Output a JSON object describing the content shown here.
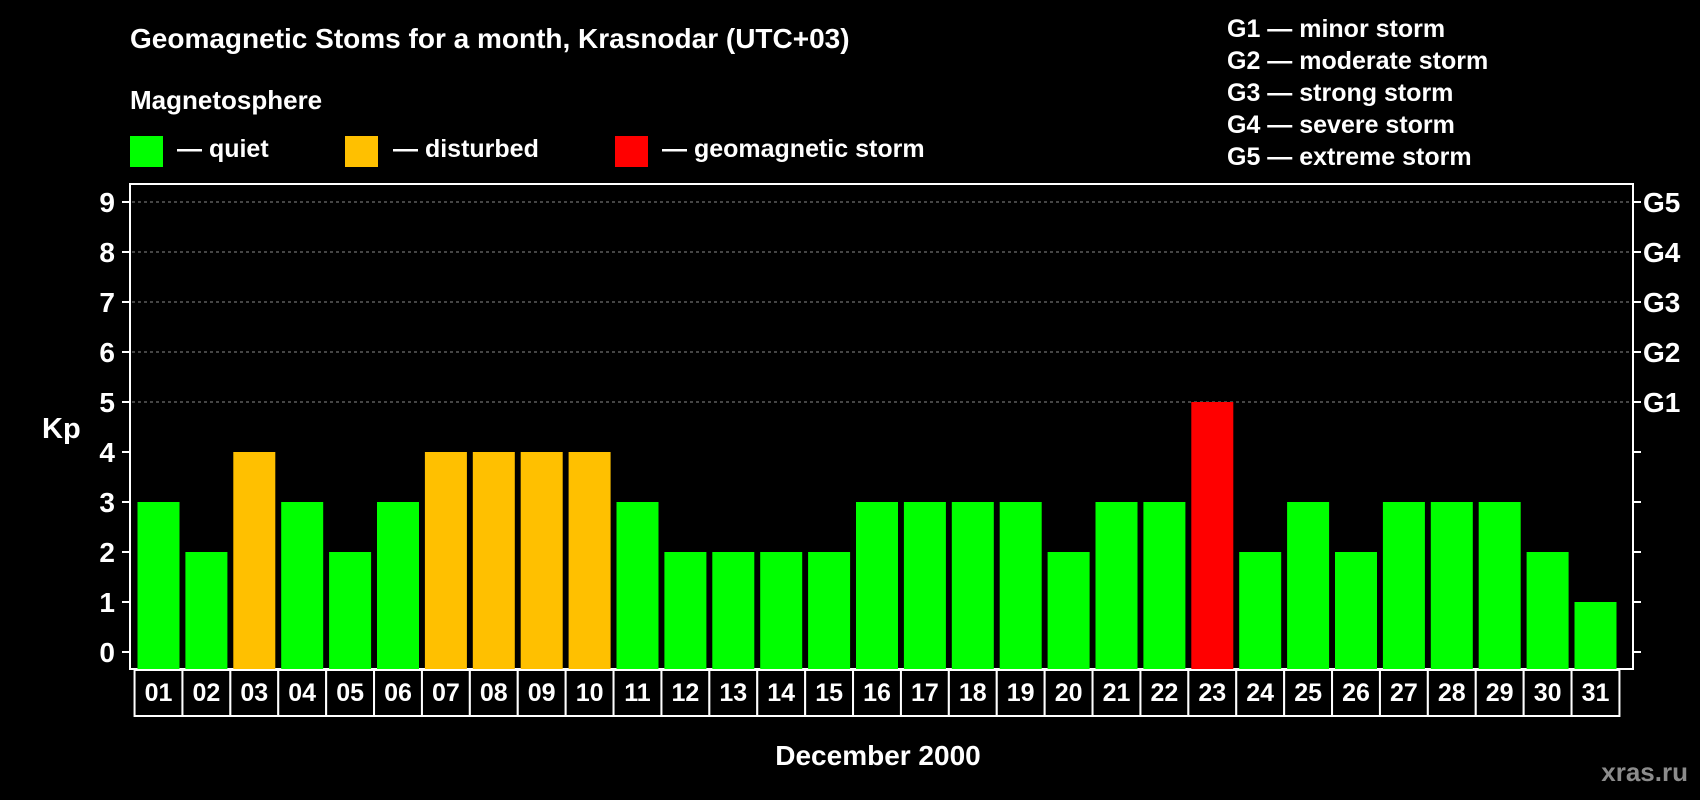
{
  "header": {
    "title": "Geomagnetic Stoms for a month, Krasnodar (UTC+03)",
    "legend_title": "Magnetosphere"
  },
  "legend": [
    {
      "label": "— quiet",
      "color": "#00ff00"
    },
    {
      "label": "— disturbed",
      "color": "#ffc000"
    },
    {
      "label": "— geomagnetic storm",
      "color": "#ff0000"
    }
  ],
  "storm_scale": [
    "G1 — minor storm",
    "G2 — moderate storm",
    "G3 — strong storm",
    "G4 — severe storm",
    "G5 — extreme storm"
  ],
  "watermark": "xras.ru",
  "chart_data": {
    "type": "bar",
    "xlabel": "December 2000",
    "ylabel": "Kp",
    "ylim": [
      0,
      9
    ],
    "yticks": [
      0,
      1,
      2,
      3,
      4,
      5,
      6,
      7,
      8,
      9
    ],
    "right_axis_labels": [
      {
        "value": 5,
        "label": "G1"
      },
      {
        "value": 6,
        "label": "G2"
      },
      {
        "value": 7,
        "label": "G3"
      },
      {
        "value": 8,
        "label": "G4"
      },
      {
        "value": 9,
        "label": "G5"
      }
    ],
    "grid_dashed_at": [
      5,
      6,
      7,
      8,
      9
    ],
    "categories": [
      "01",
      "02",
      "03",
      "04",
      "05",
      "06",
      "07",
      "08",
      "09",
      "10",
      "11",
      "12",
      "13",
      "14",
      "15",
      "16",
      "17",
      "18",
      "19",
      "20",
      "21",
      "22",
      "23",
      "24",
      "25",
      "26",
      "27",
      "28",
      "29",
      "30",
      "31"
    ],
    "values": [
      3,
      2,
      4,
      3,
      2,
      3,
      4,
      4,
      4,
      4,
      3,
      2,
      2,
      2,
      2,
      3,
      3,
      3,
      3,
      2,
      3,
      3,
      5,
      2,
      3,
      2,
      3,
      3,
      3,
      2,
      1
    ],
    "color_rule": {
      "quiet": {
        "max": 3,
        "color": "#00ff00"
      },
      "disturbed": {
        "value": 4,
        "color": "#ffc000"
      },
      "storm": {
        "min": 5,
        "color": "#ff0000"
      }
    }
  }
}
